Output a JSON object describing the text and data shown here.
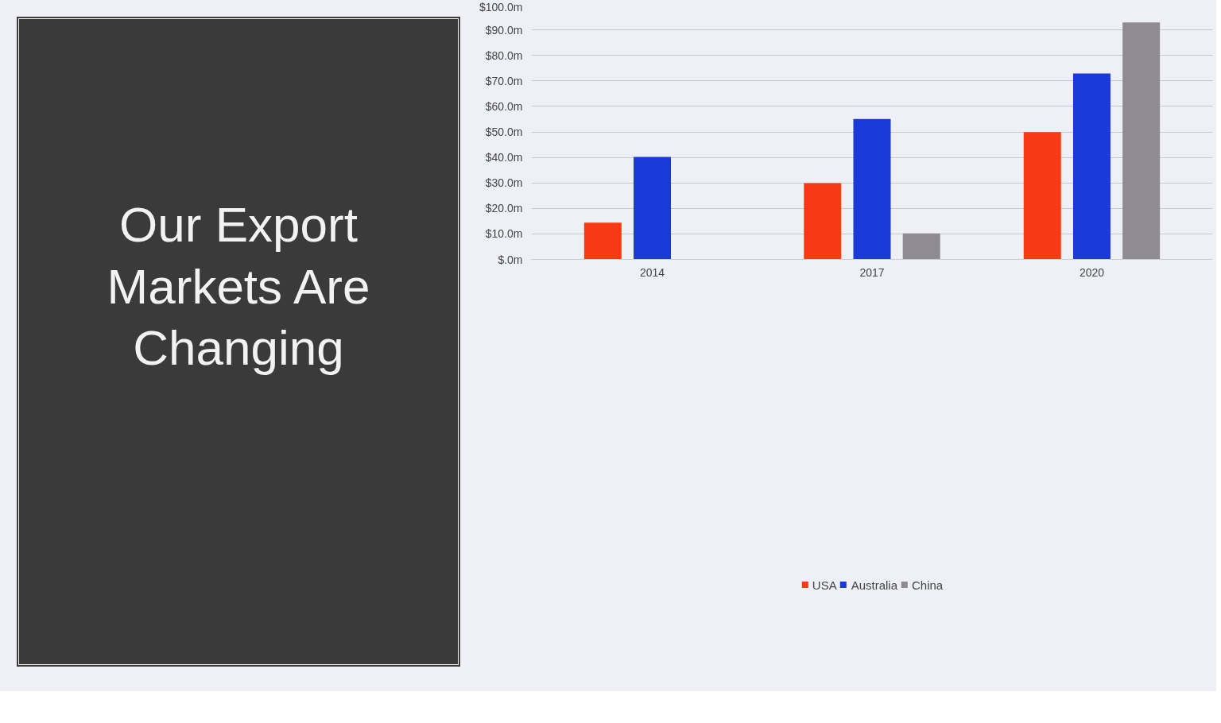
{
  "chart_data": {
    "type": "bar",
    "title": "Our Export Markets Are Changing",
    "categories": [
      "2014",
      "2017",
      "2020"
    ],
    "series": [
      {
        "name": "USA",
        "color": "#f53a14",
        "values": [
          14.4,
          29.9,
          49.9
        ]
      },
      {
        "name": "Australia",
        "color": "#1a3ad8",
        "values": [
          40.2,
          55.1,
          72.9
        ]
      },
      {
        "name": "China",
        "color": "#8e8b93",
        "values": [
          null,
          10.2,
          92.9
        ]
      }
    ],
    "ylim": [
      0,
      100
    ],
    "yticks": [
      {
        "value": 0,
        "label": "$.0m"
      },
      {
        "value": 10,
        "label": "$10.0m"
      },
      {
        "value": 20,
        "label": "$20.0m"
      },
      {
        "value": 30,
        "label": "$30.0m"
      },
      {
        "value": 40,
        "label": "$40.0m"
      },
      {
        "value": 50,
        "label": "$50.0m"
      },
      {
        "value": 60,
        "label": "$60.0m"
      },
      {
        "value": 70,
        "label": "$70.0m"
      },
      {
        "value": 80,
        "label": "$80.0m"
      },
      {
        "value": 90,
        "label": "$90.0m"
      },
      {
        "value": 100,
        "label": "$100.0m"
      }
    ],
    "grid": "y",
    "legend": "bottom"
  }
}
